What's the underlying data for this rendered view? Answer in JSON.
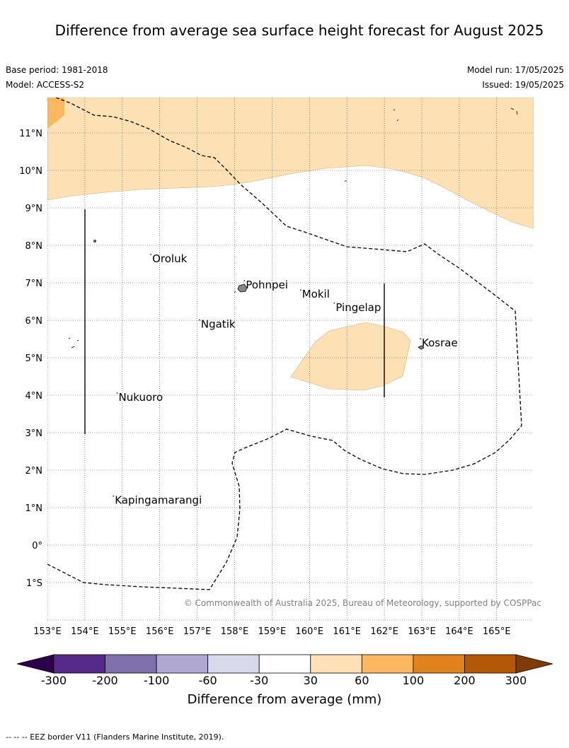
{
  "title": "Difference from average sea surface height forecast for August 2025",
  "base_period": "Base period: 1981-2018",
  "model": "Model: ACCESS-S2",
  "model_run": "Model run: 17/05/2025",
  "issued": "Issued: 19/05/2025",
  "copyright": "© Commonwealth of Australia 2025, Bureau of Meteorology, supported by COSPPac",
  "footer": "-- --  -- EEZ border V11 (Flanders Marine Institute, 2019).",
  "lon_ticks": [
    "153°E",
    "154°E",
    "155°E",
    "156°E",
    "157°E",
    "158°E",
    "159°E",
    "160°E",
    "161°E",
    "162°E",
    "163°E",
    "164°E",
    "165°E"
  ],
  "lat_ticks": [
    "11°N",
    "10°N",
    "9°N",
    "8°N",
    "7°N",
    "6°N",
    "5°N",
    "4°N",
    "3°N",
    "2°N",
    "1°N",
    "0°",
    "1°S"
  ],
  "places": [
    {
      "name": "Oroluk",
      "lon": 155.8,
      "lat": 7.55
    },
    {
      "name": "Pohnpei",
      "lon": 158.3,
      "lat": 6.85
    },
    {
      "name": "Mokil",
      "lon": 159.8,
      "lat": 6.6
    },
    {
      "name": "Pingelap",
      "lon": 160.7,
      "lat": 6.25
    },
    {
      "name": "Ngatik",
      "lon": 157.1,
      "lat": 5.8
    },
    {
      "name": "Kosrae",
      "lon": 163.0,
      "lat": 5.3
    },
    {
      "name": "Nukuoro",
      "lon": 154.9,
      "lat": 3.85
    },
    {
      "name": "Kapingamarangi",
      "lon": 154.8,
      "lat": 1.1
    }
  ],
  "colorbar": {
    "title": "Difference from average (mm)",
    "labels": [
      "-300",
      "-200",
      "-100",
      "-60",
      "-30",
      "30",
      "60",
      "100",
      "200",
      "300"
    ],
    "colors": [
      "#552a88",
      "#7f70ac",
      "#b0a8d0",
      "#d9d9ec",
      "#ffffff",
      "#fee1b7",
      "#fcb861",
      "#e0821e",
      "#b35806"
    ],
    "under_color": "#2d004b",
    "over_color": "#7f3b08"
  },
  "legend_colors": {
    "light_orange": "#fee1b7",
    "orange": "#fcb861"
  }
}
